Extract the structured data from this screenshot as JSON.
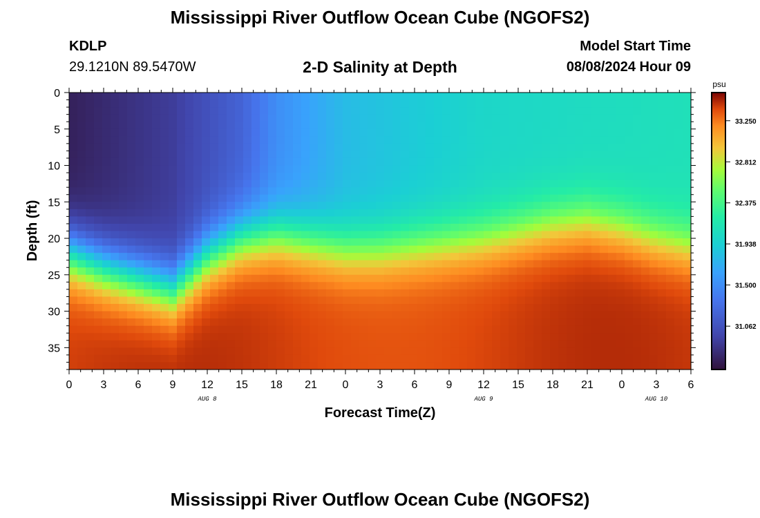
{
  "page": {
    "title": "Mississippi River Outflow Ocean Cube (NGOFS2)",
    "bottom_title": "Mississippi River Outflow Ocean Cube (NGOFS2)",
    "station_id": "KDLP",
    "coordinates": "29.1210N  89.5470W",
    "subtitle": "2-D Salinity at Depth",
    "model_start_label": "Model Start Time",
    "model_start_value": "08/08/2024 Hour 09"
  },
  "chart_data": {
    "type": "heatmap",
    "title": "2-D Salinity at Depth",
    "xlabel": "Forecast Time(Z)",
    "ylabel": "Depth (ft)",
    "x_range_hours": [
      0,
      54
    ],
    "x_ticks": [
      "0",
      "3",
      "6",
      "9",
      "12",
      "15",
      "18",
      "21",
      "0",
      "3",
      "6",
      "9",
      "12",
      "15",
      "18",
      "21",
      "0",
      "3",
      "6"
    ],
    "date_labels": [
      {
        "label": "AUG 8",
        "hour": 12
      },
      {
        "label": "AUG 9",
        "hour": 36
      },
      {
        "label": "AUG 10",
        "hour": 51
      }
    ],
    "y_range_ft": [
      0,
      38
    ],
    "y_ticks": [
      "0",
      "5",
      "10",
      "15",
      "20",
      "25",
      "30",
      "35"
    ],
    "colorbar": {
      "unit": "psu",
      "min": 30.6,
      "max": 33.55,
      "ticks": [
        "33.250",
        "32.812",
        "32.375",
        "31.938",
        "31.500",
        "31.062"
      ],
      "tick_values": [
        33.25,
        32.812,
        32.375,
        31.938,
        31.5,
        31.062
      ]
    },
    "halocline_depth_ft": {
      "hours": [
        0,
        3,
        6,
        9,
        12,
        15,
        18,
        21,
        24,
        27,
        30,
        33,
        36,
        39,
        42,
        45,
        48,
        51,
        54
      ],
      "depths": [
        22,
        24,
        25.5,
        27,
        22.5,
        20,
        19.5,
        20.5,
        21.5,
        21.5,
        21,
        20.5,
        20,
        19,
        18,
        17.5,
        18.5,
        20,
        21
      ]
    },
    "surface_salinity_psu": {
      "hours": [
        0,
        9,
        15,
        18,
        24,
        36,
        54
      ],
      "values": [
        30.7,
        30.9,
        31.2,
        31.5,
        31.8,
        32.0,
        32.1
      ]
    },
    "bottom_salinity_psu": 33.4
  }
}
